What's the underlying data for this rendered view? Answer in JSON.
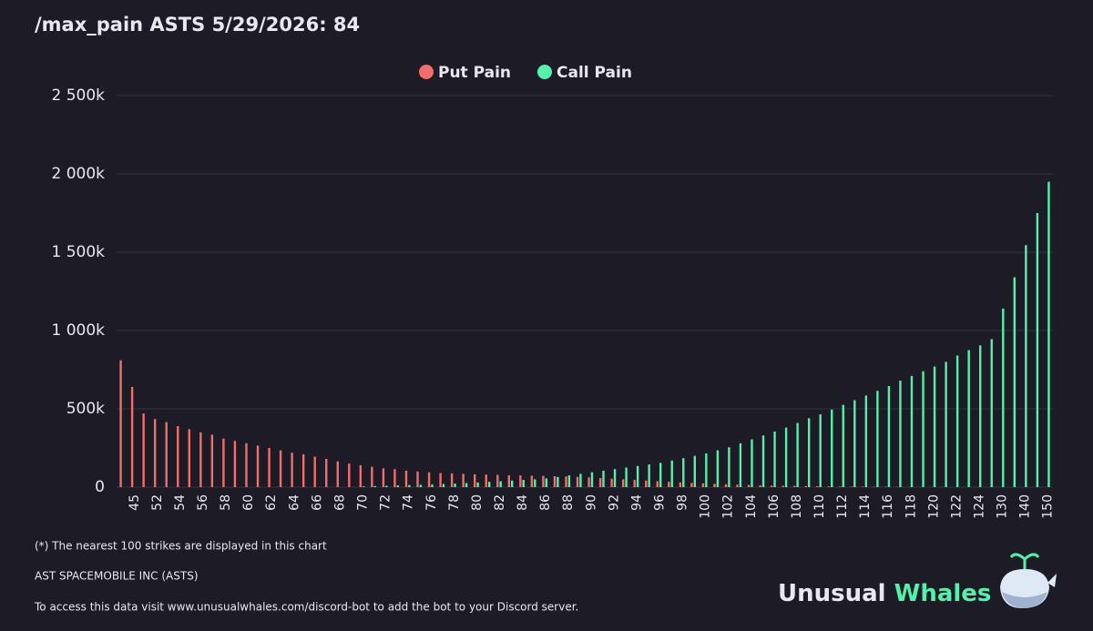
{
  "chart_data": {
    "type": "bar",
    "title": "/max_pain ASTS 5/29/2026: 84",
    "categories": [
      null,
      "45",
      null,
      "52",
      null,
      "54",
      null,
      "56",
      null,
      "58",
      null,
      "60",
      null,
      "62",
      null,
      "64",
      null,
      "66",
      null,
      "68",
      null,
      "70",
      null,
      "72",
      null,
      "74",
      null,
      "76",
      null,
      "78",
      null,
      "80",
      null,
      "82",
      null,
      "84",
      null,
      "86",
      null,
      "88",
      null,
      "90",
      null,
      "92",
      null,
      "94",
      null,
      "96",
      null,
      "98",
      null,
      "100",
      null,
      "102",
      null,
      "104",
      null,
      "106",
      null,
      "108",
      null,
      "110",
      null,
      "112",
      null,
      "114",
      null,
      "116",
      null,
      "118",
      null,
      "120",
      null,
      "122",
      null,
      "124",
      null,
      "130",
      null,
      "140",
      null,
      "150"
    ],
    "series": [
      {
        "name": "Put Pain",
        "color": "#f26d6d",
        "values": [
          810000,
          640000,
          470000,
          435000,
          415000,
          390000,
          370000,
          350000,
          335000,
          310000,
          295000,
          280000,
          265000,
          250000,
          235000,
          220000,
          210000,
          195000,
          180000,
          165000,
          150000,
          140000,
          130000,
          120000,
          115000,
          105000,
          100000,
          95000,
          90000,
          88000,
          85000,
          82000,
          80000,
          78000,
          76000,
          75000,
          73000,
          72000,
          70000,
          68000,
          65000,
          62000,
          58000,
          54000,
          50000,
          46000,
          42000,
          38000,
          34000,
          30000,
          27000,
          24000,
          21000,
          18000,
          16000,
          14000,
          12000,
          10000,
          9000,
          8000,
          7000,
          6000,
          5000,
          4000,
          3500,
          3000,
          2500,
          2000,
          1500,
          1200,
          1000,
          800,
          600,
          400,
          300,
          200,
          100,
          0,
          0,
          0,
          0,
          0
        ]
      },
      {
        "name": "Call Pain",
        "color": "#55f0aa",
        "values": [
          0,
          0,
          0,
          0,
          0,
          0,
          0,
          0,
          0,
          0,
          0,
          0,
          0,
          0,
          0,
          0,
          0,
          0,
          0,
          0,
          0,
          5000,
          7000,
          9000,
          11000,
          13000,
          15000,
          17000,
          20000,
          23000,
          26000,
          30000,
          34000,
          38000,
          42000,
          46000,
          50000,
          56000,
          65000,
          75000,
          85000,
          95000,
          105000,
          115000,
          125000,
          135000,
          145000,
          155000,
          170000,
          185000,
          200000,
          215000,
          235000,
          255000,
          280000,
          305000,
          330000,
          355000,
          380000,
          410000,
          440000,
          465000,
          495000,
          525000,
          555000,
          585000,
          615000,
          645000,
          680000,
          710000,
          740000,
          770000,
          800000,
          840000,
          875000,
          905000,
          945000,
          1140000,
          1340000,
          1545000,
          1750000,
          1950000
        ]
      }
    ],
    "ylim": [
      0,
      2500000
    ],
    "yticks": [
      0,
      {
        "value": 500000,
        "label": "500k"
      },
      {
        "value": 1000000,
        "label": "1 000k"
      },
      {
        "value": 1500000,
        "label": "1 500k"
      },
      {
        "value": 2000000,
        "label": "2 000k"
      },
      {
        "value": 2500000,
        "label": "2 500k"
      }
    ],
    "grid": true,
    "legend": "top"
  },
  "footer": {
    "note": "(*) The nearest 100 strikes are displayed in this chart",
    "company": "AST SPACEMOBILE INC (ASTS)",
    "access": "To access this data visit www.unusualwhales.com/discord-bot to add the bot to your Discord server."
  },
  "logo": {
    "part1": "Unusual",
    "part2": "Whales"
  }
}
